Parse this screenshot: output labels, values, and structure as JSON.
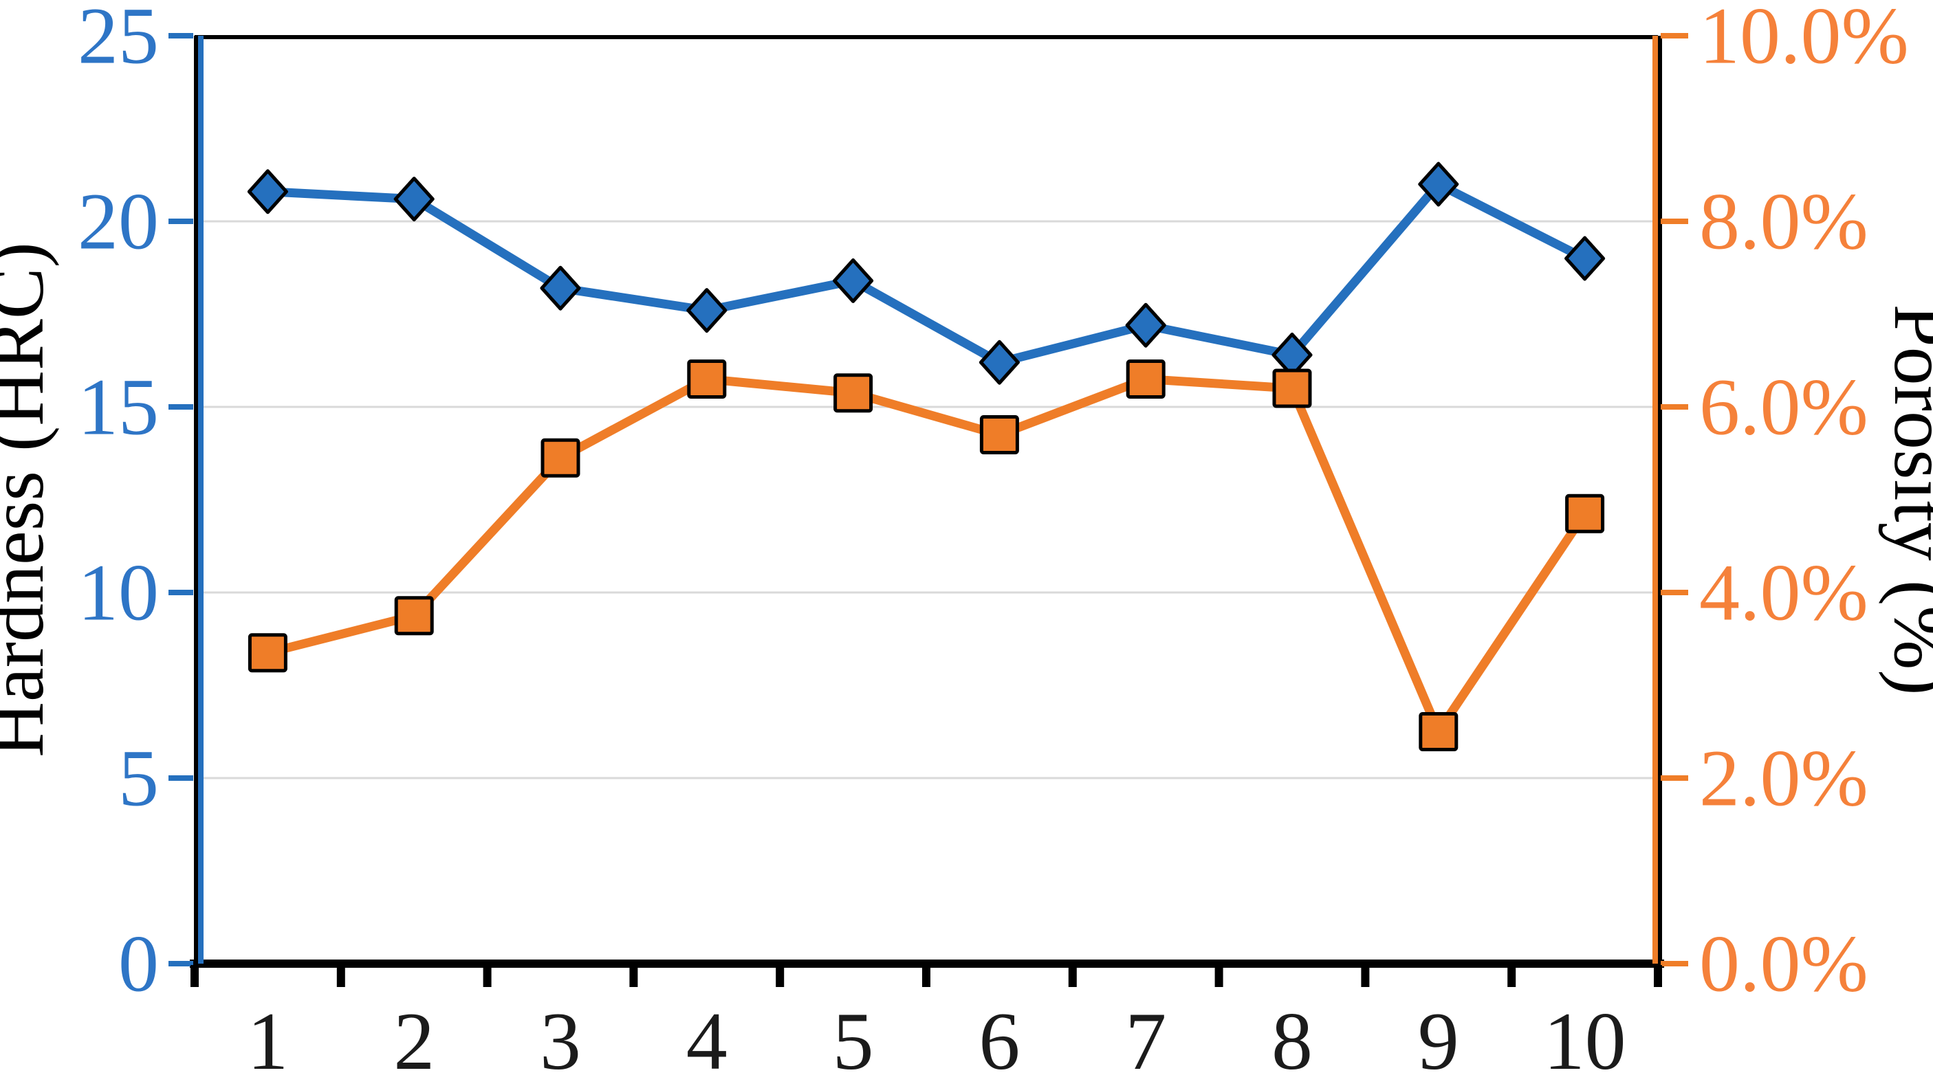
{
  "chart_data": {
    "type": "line",
    "subtype": "dual-axis-line",
    "title": "",
    "categories": [
      "1",
      "2",
      "3",
      "4",
      "5",
      "6",
      "7",
      "8",
      "9",
      "10"
    ],
    "series": [
      {
        "name": "Hardness",
        "axis": "left",
        "marker": "diamond",
        "values": [
          20.8,
          20.6,
          18.2,
          17.6,
          18.4,
          16.2,
          17.2,
          16.4,
          21.0,
          19.0
        ]
      },
      {
        "name": "Porosity",
        "axis": "right",
        "marker": "square",
        "values": [
          3.35,
          3.75,
          5.45,
          6.3,
          6.15,
          5.7,
          6.3,
          6.2,
          2.5,
          4.85
        ]
      }
    ],
    "left_axis": {
      "title": "Hardness (HRC)",
      "min": 0,
      "max": 25,
      "step": 5,
      "tick_labels": [
        "0",
        "5",
        "10",
        "15",
        "20",
        "25"
      ]
    },
    "right_axis": {
      "title": "Porosity (%)",
      "min": 0,
      "max": 10,
      "step": 2,
      "tick_labels": [
        "0.0%",
        "2.0%",
        "4.0%",
        "6.0%",
        "8.0%",
        "10.0%"
      ]
    },
    "x_axis": {
      "tick_labels": [
        "1",
        "2",
        "3",
        "4",
        "5",
        "6",
        "7",
        "8",
        "9",
        "10"
      ]
    },
    "grid": {
      "show": true,
      "at_left_values": [
        5,
        10,
        15,
        20
      ]
    },
    "legend_position": "none",
    "colors": {
      "blue": "#2570be",
      "blue_text": "#2e75c6",
      "orange": "#ef7d28",
      "orange_text": "#f5813a",
      "grid": "#d9d9d9",
      "border": "#000000",
      "x_text": "#1b1b1b"
    }
  }
}
